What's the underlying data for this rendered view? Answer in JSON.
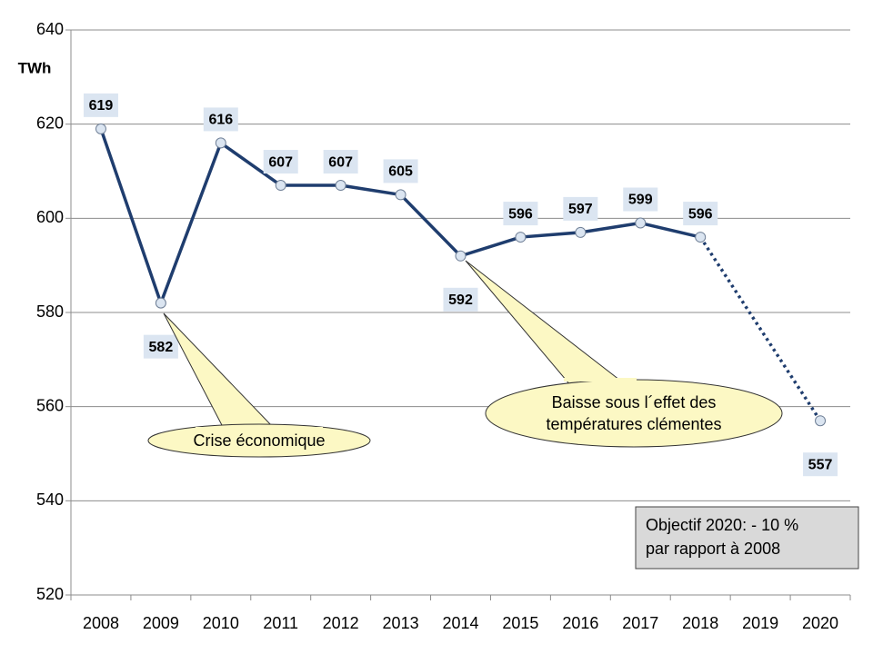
{
  "chart_data": {
    "type": "line",
    "y_axis_label": "TWh",
    "categories": [
      "2008",
      "2009",
      "2010",
      "2011",
      "2012",
      "2013",
      "2014",
      "2015",
      "2016",
      "2017",
      "2018",
      "2019",
      "2020"
    ],
    "values": [
      619,
      582,
      616,
      607,
      607,
      605,
      592,
      596,
      597,
      599,
      596,
      null,
      557
    ],
    "color": "#1f3d6e",
    "gap_style": "dotted",
    "ylim": [
      520,
      640
    ],
    "yticks": [
      520,
      540,
      560,
      580,
      600,
      620,
      640
    ],
    "grid": true,
    "annotations": [
      {
        "lines": [
          "Crise économique"
        ]
      },
      {
        "lines": [
          "Baisse sous l´effet des",
          "températures clémentes"
        ]
      }
    ],
    "note_box": {
      "lines": [
        "Objectif 2020: - 10 %",
        "par rapport à 2008"
      ]
    }
  }
}
